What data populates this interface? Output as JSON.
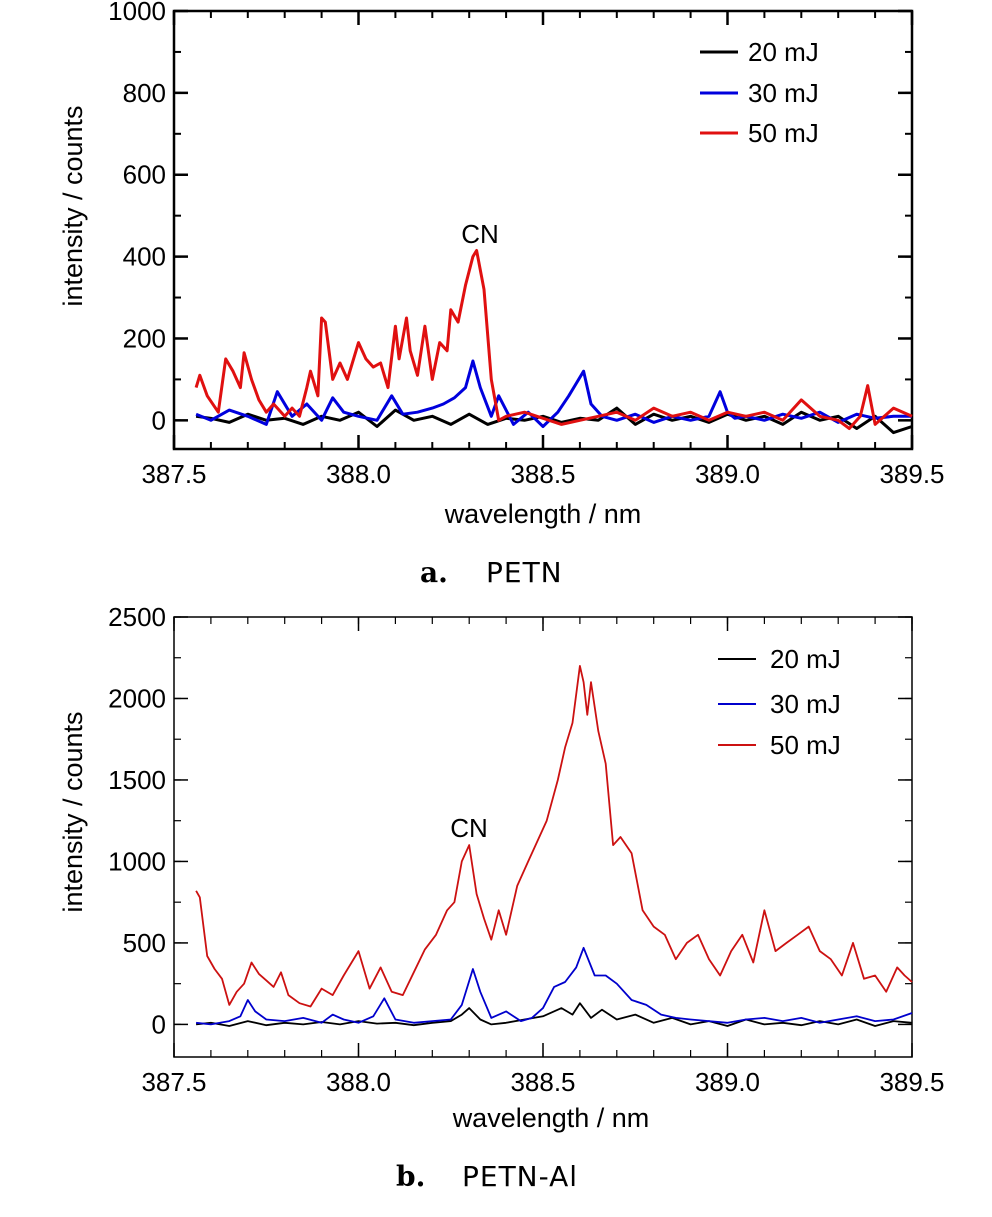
{
  "chart_data": [
    {
      "type": "line",
      "caption_letter": "a.",
      "caption_text": "PETN",
      "xlabel": "wavelength / nm",
      "ylabel": "intensity / counts",
      "xlim": [
        387.5,
        389.5
      ],
      "ylim": [
        -70,
        1000
      ],
      "xticks": [
        387.5,
        388.0,
        388.5,
        389.0,
        389.5
      ],
      "xtick_labels": [
        "387.5",
        "388.0",
        "388.5",
        "389.0",
        "389.5"
      ],
      "yticks": [
        0,
        200,
        400,
        600,
        800,
        1000
      ],
      "ytick_labels": [
        "0",
        "200",
        "400",
        "600",
        "800",
        "1000"
      ],
      "legend_position": "top-right",
      "annotations": [
        {
          "text": "CN",
          "x": 388.31,
          "y": 440
        }
      ],
      "series": [
        {
          "name": "20 mJ",
          "color": "#000000",
          "x": [
            387.56,
            387.6,
            387.65,
            387.7,
            387.75,
            387.8,
            387.85,
            387.9,
            387.95,
            388.0,
            388.05,
            388.1,
            388.15,
            388.2,
            388.25,
            388.3,
            388.35,
            388.4,
            388.45,
            388.5,
            388.55,
            388.6,
            388.65,
            388.7,
            388.75,
            388.8,
            388.85,
            388.9,
            388.95,
            389.0,
            389.05,
            389.1,
            389.15,
            389.2,
            389.25,
            389.3,
            389.35,
            389.4,
            389.45,
            389.5
          ],
          "y": [
            10,
            5,
            -5,
            15,
            0,
            5,
            -10,
            10,
            0,
            20,
            -15,
            25,
            0,
            10,
            -10,
            15,
            -10,
            5,
            0,
            10,
            -5,
            5,
            0,
            30,
            -10,
            15,
            0,
            10,
            -5,
            15,
            0,
            10,
            -10,
            20,
            0,
            10,
            -20,
            10,
            -30,
            -15
          ]
        },
        {
          "name": "30 mJ",
          "color": "#0000dd",
          "x": [
            387.56,
            387.6,
            387.65,
            387.7,
            387.75,
            387.78,
            387.82,
            387.86,
            387.9,
            387.93,
            387.96,
            388.0,
            388.05,
            388.09,
            388.12,
            388.16,
            388.2,
            388.23,
            388.26,
            388.29,
            388.31,
            388.33,
            388.36,
            388.38,
            388.42,
            388.46,
            388.5,
            388.54,
            388.57,
            388.59,
            388.61,
            388.63,
            388.66,
            388.7,
            388.75,
            388.8,
            388.85,
            388.9,
            388.95,
            388.98,
            389.0,
            389.02,
            389.05,
            389.1,
            389.15,
            389.2,
            389.25,
            389.3,
            389.35,
            389.4,
            389.45,
            389.5
          ],
          "y": [
            15,
            0,
            25,
            10,
            -10,
            70,
            10,
            40,
            0,
            55,
            20,
            10,
            0,
            60,
            15,
            20,
            30,
            40,
            55,
            80,
            145,
            80,
            10,
            60,
            -10,
            20,
            -15,
            20,
            60,
            90,
            120,
            40,
            10,
            0,
            15,
            -5,
            10,
            0,
            10,
            70,
            20,
            5,
            10,
            0,
            15,
            5,
            20,
            -5,
            15,
            5,
            10,
            10
          ]
        },
        {
          "name": "50 mJ",
          "color": "#e01010",
          "x": [
            387.56,
            387.57,
            387.59,
            387.62,
            387.64,
            387.66,
            387.68,
            387.69,
            387.71,
            387.73,
            387.75,
            387.77,
            387.8,
            387.82,
            387.84,
            387.86,
            387.87,
            387.89,
            387.9,
            387.91,
            387.93,
            387.95,
            387.97,
            388.0,
            388.02,
            388.04,
            388.06,
            388.08,
            388.1,
            388.11,
            388.13,
            388.14,
            388.16,
            388.18,
            388.2,
            388.22,
            388.24,
            388.25,
            388.27,
            388.29,
            388.31,
            388.32,
            388.34,
            388.36,
            388.38,
            388.4,
            388.45,
            388.5,
            388.55,
            388.6,
            388.65,
            388.7,
            388.75,
            388.8,
            388.85,
            388.9,
            388.95,
            389.0,
            389.05,
            389.1,
            389.15,
            389.2,
            389.25,
            389.3,
            389.33,
            389.36,
            389.38,
            389.4,
            389.45,
            389.5
          ],
          "y": [
            80,
            110,
            60,
            20,
            150,
            120,
            80,
            165,
            100,
            50,
            20,
            40,
            10,
            30,
            10,
            80,
            120,
            60,
            250,
            240,
            100,
            140,
            100,
            190,
            150,
            130,
            140,
            80,
            230,
            150,
            250,
            170,
            110,
            230,
            100,
            190,
            170,
            270,
            240,
            330,
            400,
            415,
            320,
            100,
            0,
            10,
            20,
            5,
            -10,
            0,
            10,
            20,
            0,
            30,
            10,
            20,
            0,
            20,
            10,
            20,
            0,
            50,
            10,
            0,
            -20,
            10,
            85,
            -10,
            30,
            10
          ]
        }
      ]
    },
    {
      "type": "line",
      "caption_letter": "b.",
      "caption_text": "PETN-Al",
      "xlabel": "wavelength / nm",
      "ylabel": "intensity / counts",
      "xlim": [
        387.5,
        389.5
      ],
      "ylim": [
        -200,
        2500
      ],
      "xticks": [
        387.5,
        388.0,
        388.5,
        389.0,
        389.5
      ],
      "xtick_labels": [
        "387.5",
        "388.0",
        "388.5",
        "389.0",
        "389.5"
      ],
      "yticks": [
        0,
        500,
        1000,
        1500,
        2000,
        2500
      ],
      "ytick_labels": [
        "0",
        "500",
        "1000",
        "1500",
        "2000",
        "2500"
      ],
      "legend_position": "top-right",
      "annotations": [
        {
          "text": "CN",
          "x": 388.29,
          "y": 1180
        }
      ],
      "series": [
        {
          "name": "20 mJ",
          "color": "#000000",
          "x": [
            387.56,
            387.6,
            387.65,
            387.7,
            387.75,
            387.8,
            387.85,
            387.9,
            387.95,
            388.0,
            388.05,
            388.1,
            388.15,
            388.2,
            388.25,
            388.28,
            388.3,
            388.33,
            388.36,
            388.4,
            388.45,
            388.5,
            388.55,
            388.58,
            388.6,
            388.63,
            388.66,
            388.7,
            388.75,
            388.8,
            388.85,
            388.9,
            388.95,
            389.0,
            389.05,
            389.1,
            389.15,
            389.2,
            389.25,
            389.3,
            389.35,
            389.4,
            389.45,
            389.5
          ],
          "y": [
            0,
            10,
            -10,
            20,
            -5,
            10,
            0,
            15,
            0,
            20,
            5,
            10,
            -5,
            10,
            20,
            60,
            100,
            30,
            0,
            10,
            30,
            50,
            100,
            60,
            130,
            40,
            90,
            30,
            60,
            10,
            40,
            0,
            20,
            -10,
            30,
            0,
            10,
            -5,
            20,
            0,
            30,
            -10,
            20,
            10
          ]
        },
        {
          "name": "30 mJ",
          "color": "#0000cc",
          "x": [
            387.56,
            387.6,
            387.65,
            387.68,
            387.7,
            387.72,
            387.75,
            387.8,
            387.85,
            387.9,
            387.93,
            387.96,
            388.0,
            388.04,
            388.07,
            388.1,
            388.15,
            388.2,
            388.25,
            388.28,
            388.31,
            388.33,
            388.36,
            388.4,
            388.44,
            388.47,
            388.5,
            388.53,
            388.56,
            388.59,
            388.61,
            388.64,
            388.67,
            388.7,
            388.74,
            388.78,
            388.82,
            388.86,
            388.9,
            388.95,
            389.0,
            389.05,
            389.1,
            389.15,
            389.2,
            389.25,
            389.3,
            389.35,
            389.4,
            389.45,
            389.5
          ],
          "y": [
            10,
            0,
            20,
            50,
            150,
            80,
            30,
            20,
            40,
            10,
            60,
            30,
            10,
            50,
            160,
            30,
            10,
            20,
            30,
            120,
            340,
            200,
            40,
            80,
            20,
            40,
            100,
            230,
            260,
            350,
            470,
            300,
            300,
            250,
            150,
            120,
            60,
            40,
            30,
            20,
            10,
            30,
            40,
            20,
            40,
            10,
            30,
            50,
            20,
            30,
            70
          ]
        },
        {
          "name": "50 mJ",
          "color": "#cc1111",
          "x": [
            387.56,
            387.57,
            387.59,
            387.61,
            387.63,
            387.65,
            387.67,
            387.69,
            387.71,
            387.73,
            387.75,
            387.77,
            387.79,
            387.81,
            387.84,
            387.87,
            387.9,
            387.93,
            387.96,
            388.0,
            388.03,
            388.06,
            388.09,
            388.12,
            388.15,
            388.18,
            388.21,
            388.24,
            388.26,
            388.28,
            388.3,
            388.32,
            388.34,
            388.36,
            388.38,
            388.4,
            388.43,
            388.46,
            388.48,
            388.51,
            388.54,
            388.56,
            388.58,
            388.6,
            388.61,
            388.62,
            388.63,
            388.65,
            388.67,
            388.69,
            388.71,
            388.74,
            388.77,
            388.8,
            388.83,
            388.86,
            388.89,
            388.92,
            388.95,
            388.98,
            389.01,
            389.04,
            389.07,
            389.1,
            389.13,
            389.16,
            389.19,
            389.22,
            389.25,
            389.28,
            389.31,
            389.34,
            389.37,
            389.4,
            389.43,
            389.46,
            389.48,
            389.5
          ],
          "y": [
            820,
            780,
            420,
            340,
            280,
            120,
            200,
            250,
            380,
            310,
            270,
            230,
            320,
            180,
            130,
            110,
            220,
            180,
            300,
            450,
            220,
            350,
            200,
            180,
            320,
            460,
            550,
            700,
            750,
            1000,
            1100,
            800,
            650,
            520,
            700,
            550,
            850,
            1000,
            1100,
            1250,
            1500,
            1700,
            1850,
            2200,
            2100,
            1900,
            2100,
            1800,
            1600,
            1100,
            1150,
            1050,
            700,
            600,
            550,
            400,
            500,
            550,
            400,
            300,
            450,
            550,
            380,
            700,
            450,
            500,
            550,
            600,
            450,
            400,
            300,
            500,
            280,
            300,
            200,
            350,
            300,
            260
          ]
        }
      ]
    }
  ]
}
